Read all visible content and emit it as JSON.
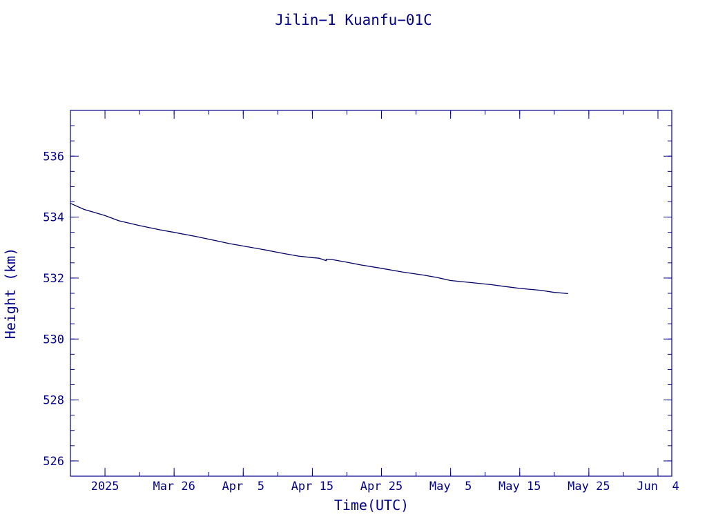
{
  "chart_data": {
    "type": "line",
    "title": "Jilin−1 Kuanfu−01C",
    "xlabel": "Time(UTC)",
    "ylabel": "Height (km)",
    "xlim": [
      "2025-03-11",
      "2025-06-06"
    ],
    "ylim": [
      525.5,
      537.5
    ],
    "x_tick_labels": [
      {
        "date": "2025-03-16",
        "label": "2025"
      },
      {
        "date": "2025-03-26",
        "label": "Mar 26"
      },
      {
        "date": "2025-04-05",
        "label": "Apr  5"
      },
      {
        "date": "2025-04-15",
        "label": "Apr 15"
      },
      {
        "date": "2025-04-25",
        "label": "Apr 25"
      },
      {
        "date": "2025-05-05",
        "label": "May  5"
      },
      {
        "date": "2025-05-15",
        "label": "May 15"
      },
      {
        "date": "2025-05-25",
        "label": "May 25"
      },
      {
        "date": "2025-06-04",
        "label": "Jun  4"
      }
    ],
    "y_ticks": [
      526,
      528,
      530,
      532,
      534,
      536
    ],
    "grid": false,
    "colors": {
      "axis": "#00008b",
      "line": "#000066"
    },
    "series": [
      {
        "x": [
          "2025-03-11",
          "2025-03-13",
          "2025-03-16",
          "2025-03-18",
          "2025-03-21",
          "2025-03-24",
          "2025-03-26",
          "2025-03-29",
          "2025-04-01",
          "2025-04-03",
          "2025-04-05",
          "2025-04-08",
          "2025-04-11",
          "2025-04-13",
          "2025-04-15",
          "2025-04-16",
          "2025-04-17",
          "2025-04-17",
          "2025-04-18",
          "2025-04-20",
          "2025-04-22",
          "2025-04-25",
          "2025-04-28",
          "2025-05-01",
          "2025-05-03",
          "2025-05-05",
          "2025-05-08",
          "2025-05-11",
          "2025-05-13",
          "2025-05-15",
          "2025-05-18",
          "2025-05-20",
          "2025-05-22"
        ],
        "y": [
          534.45,
          534.25,
          534.05,
          533.88,
          533.72,
          533.58,
          533.5,
          533.37,
          533.23,
          533.13,
          533.05,
          532.93,
          532.8,
          532.72,
          532.67,
          532.65,
          532.57,
          532.62,
          532.6,
          532.52,
          532.43,
          532.32,
          532.2,
          532.1,
          532.02,
          531.92,
          531.85,
          531.78,
          531.72,
          531.66,
          531.6,
          531.53,
          531.49
        ]
      }
    ]
  }
}
